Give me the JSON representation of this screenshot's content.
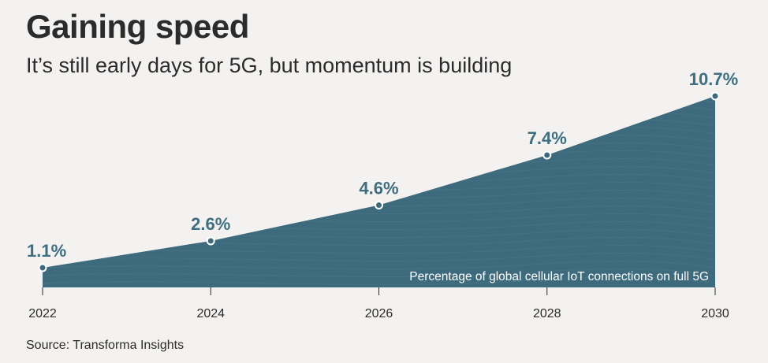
{
  "header": {
    "title": "Gaining speed",
    "subtitle": "It’s still early days for 5G, but momentum is building"
  },
  "footer": {
    "source": "Source: Transforma Insights"
  },
  "colors": {
    "area": "#3d6a7c",
    "label": "#3e6e80",
    "axis": "#2b2b2b"
  },
  "chart_data": {
    "type": "area",
    "title": "Gaining speed",
    "subtitle": "It’s still early days for 5G, but momentum is building",
    "x": [
      2022,
      2024,
      2026,
      2028,
      2030
    ],
    "tick_labels": [
      "2022",
      "2024",
      "2026",
      "2028",
      "2030"
    ],
    "series": [
      {
        "name": "Percentage of global cellular IoT connections on full 5G",
        "values": [
          1.1,
          2.6,
          4.6,
          7.4,
          10.7
        ],
        "labels": [
          "1.1%",
          "2.6%",
          "4.6%",
          "7.4%",
          "10.7%"
        ]
      }
    ],
    "annotation": "Percentage of global cellular IoT connections on full 5G",
    "xlabel": "",
    "ylabel": "",
    "xlim": [
      2022,
      2030
    ],
    "ylim": [
      0,
      10.7
    ],
    "grid": false,
    "legend": "none"
  }
}
